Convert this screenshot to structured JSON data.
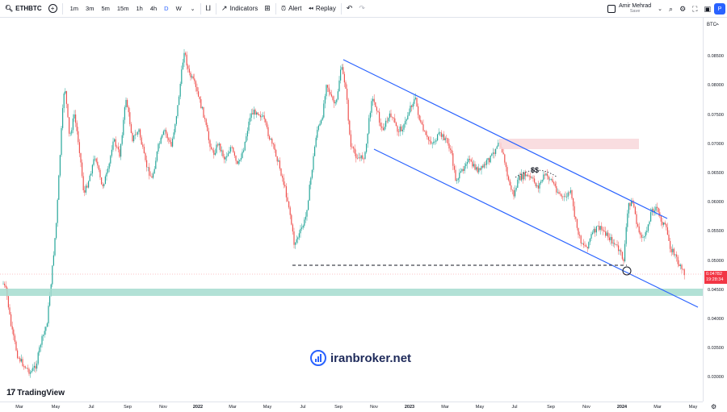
{
  "toolbar": {
    "symbol": "ETHBTC",
    "timeframes": [
      "1m",
      "3m",
      "5m",
      "15m",
      "1h",
      "4h",
      "D",
      "W"
    ],
    "active_timeframe": "D",
    "indicators_label": "Indicators",
    "alert_label": "Alert",
    "replay_label": "Replay",
    "user_name": "Amir Mehrad",
    "save_label": "Save",
    "publish_label": "P"
  },
  "price_scale": {
    "currency": "BTC",
    "ticks": [
      "0.08500",
      "0.08000",
      "0.07500",
      "0.07000",
      "0.06500",
      "0.06000",
      "0.05500",
      "0.05000",
      "0.04500",
      "0.04000",
      "0.03500",
      "0.03000"
    ],
    "current_price": "0.04782",
    "countdown": "19:28:34"
  },
  "time_scale": {
    "ticks": [
      {
        "label": "Mar",
        "year": false
      },
      {
        "label": "May",
        "year": false
      },
      {
        "label": "Jul",
        "year": false
      },
      {
        "label": "Sep",
        "year": false
      },
      {
        "label": "Nov",
        "year": false
      },
      {
        "label": "2022",
        "year": true
      },
      {
        "label": "Mar",
        "year": false
      },
      {
        "label": "May",
        "year": false
      },
      {
        "label": "Jul",
        "year": false
      },
      {
        "label": "Sep",
        "year": false
      },
      {
        "label": "Nov",
        "year": false
      },
      {
        "label": "2023",
        "year": true
      },
      {
        "label": "Mar",
        "year": false
      },
      {
        "label": "May",
        "year": false
      },
      {
        "label": "Jul",
        "year": false
      },
      {
        "label": "Sep",
        "year": false
      },
      {
        "label": "Nov",
        "year": false
      },
      {
        "label": "2024",
        "year": true
      },
      {
        "label": "Mar",
        "year": false
      },
      {
        "label": "May",
        "year": false
      }
    ]
  },
  "annotations": {
    "liquidity_label": "$$"
  },
  "watermarks": {
    "tradingview": "TradingView",
    "broker": "iranbroker.net"
  },
  "colors": {
    "up": "#26a69a",
    "down": "#ef5350",
    "channel": "#2962ff",
    "supply_zone": "#f8d7da",
    "support_zone": "#a5dccf"
  }
}
